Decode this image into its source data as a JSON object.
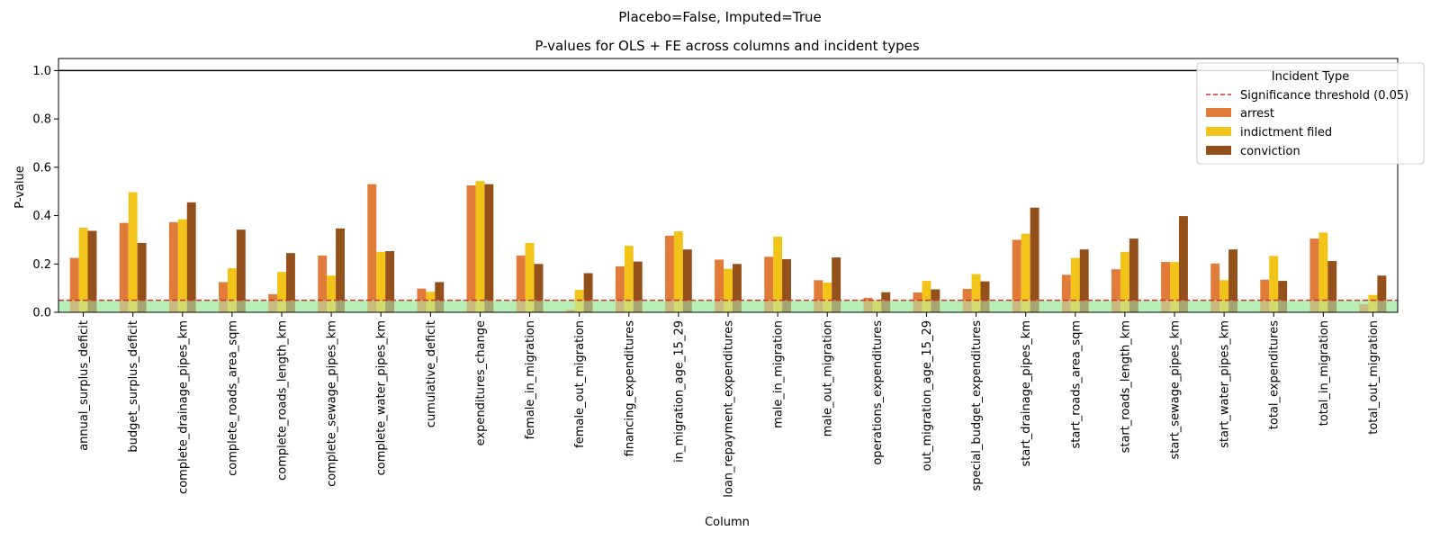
{
  "chart_data": {
    "type": "bar",
    "suptitle": "Placebo=False, Imputed=True",
    "title": "P-values for OLS + FE across columns and incident types",
    "xlabel": "Column",
    "ylabel": "P-value",
    "ylim": [
      0,
      1.05
    ],
    "yticks": [
      "0.0",
      "0.2",
      "0.4",
      "0.6",
      "0.8",
      "1.0"
    ],
    "ytick_values": [
      0.0,
      0.2,
      0.4,
      0.6,
      0.8,
      1.0
    ],
    "reference_line_value": 1.0,
    "significance_threshold": 0.05,
    "significance_region": [
      0,
      0.05
    ],
    "legend_title": "Incident Type",
    "legend_position": "top-right",
    "threshold_label": "Significance threshold (0.05)",
    "colors": {
      "arrest": "#e07b39",
      "indictment filed": "#f2c318",
      "conviction": "#93501b",
      "threshold": "#d0302a",
      "significance_band": "#b6efb6",
      "reference_line": "#000000"
    },
    "categories": [
      "annual_surplus_deficit",
      "budget_surplus_deficit",
      "complete_drainage_pipes_km",
      "complete_roads_area_sqm",
      "complete_roads_length_km",
      "complete_sewage_pipes_km",
      "complete_water_pipes_km",
      "cumulative_deficit",
      "expenditures_change",
      "female_in_migration",
      "female_out_migration",
      "financing_expenditures",
      "in_migration_age_15_29",
      "loan_repayment_expenditures",
      "male_in_migration",
      "male_out_migration",
      "operations_expenditures",
      "out_migration_age_15_29",
      "special_budget_expenditures",
      "start_drainage_pipes_km",
      "start_roads_area_sqm",
      "start_roads_length_km",
      "start_sewage_pipes_km",
      "start_water_pipes_km",
      "total_expenditures",
      "total_in_migration",
      "total_out_migration"
    ],
    "series": [
      {
        "name": "arrest",
        "values": [
          0.225,
          0.37,
          0.373,
          0.125,
          0.075,
          0.235,
          0.53,
          0.098,
          0.525,
          0.235,
          0.01,
          0.19,
          0.317,
          0.218,
          0.23,
          0.133,
          0.06,
          0.082,
          0.097,
          0.3,
          0.155,
          0.178,
          0.208,
          0.202,
          0.135,
          0.305,
          0.033
        ]
      },
      {
        "name": "indictment filed",
        "values": [
          0.35,
          0.497,
          0.385,
          0.182,
          0.167,
          0.152,
          0.25,
          0.085,
          0.543,
          0.287,
          0.093,
          0.275,
          0.335,
          0.18,
          0.313,
          0.123,
          0.05,
          0.13,
          0.158,
          0.325,
          0.225,
          0.25,
          0.208,
          0.133,
          0.233,
          0.33,
          0.072
        ]
      },
      {
        "name": "conviction",
        "values": [
          0.337,
          0.287,
          0.455,
          0.342,
          0.245,
          0.347,
          0.253,
          0.125,
          0.53,
          0.2,
          0.162,
          0.21,
          0.26,
          0.2,
          0.22,
          0.227,
          0.083,
          0.095,
          0.128,
          0.433,
          0.26,
          0.305,
          0.398,
          0.26,
          0.13,
          0.212,
          0.152
        ]
      }
    ]
  }
}
